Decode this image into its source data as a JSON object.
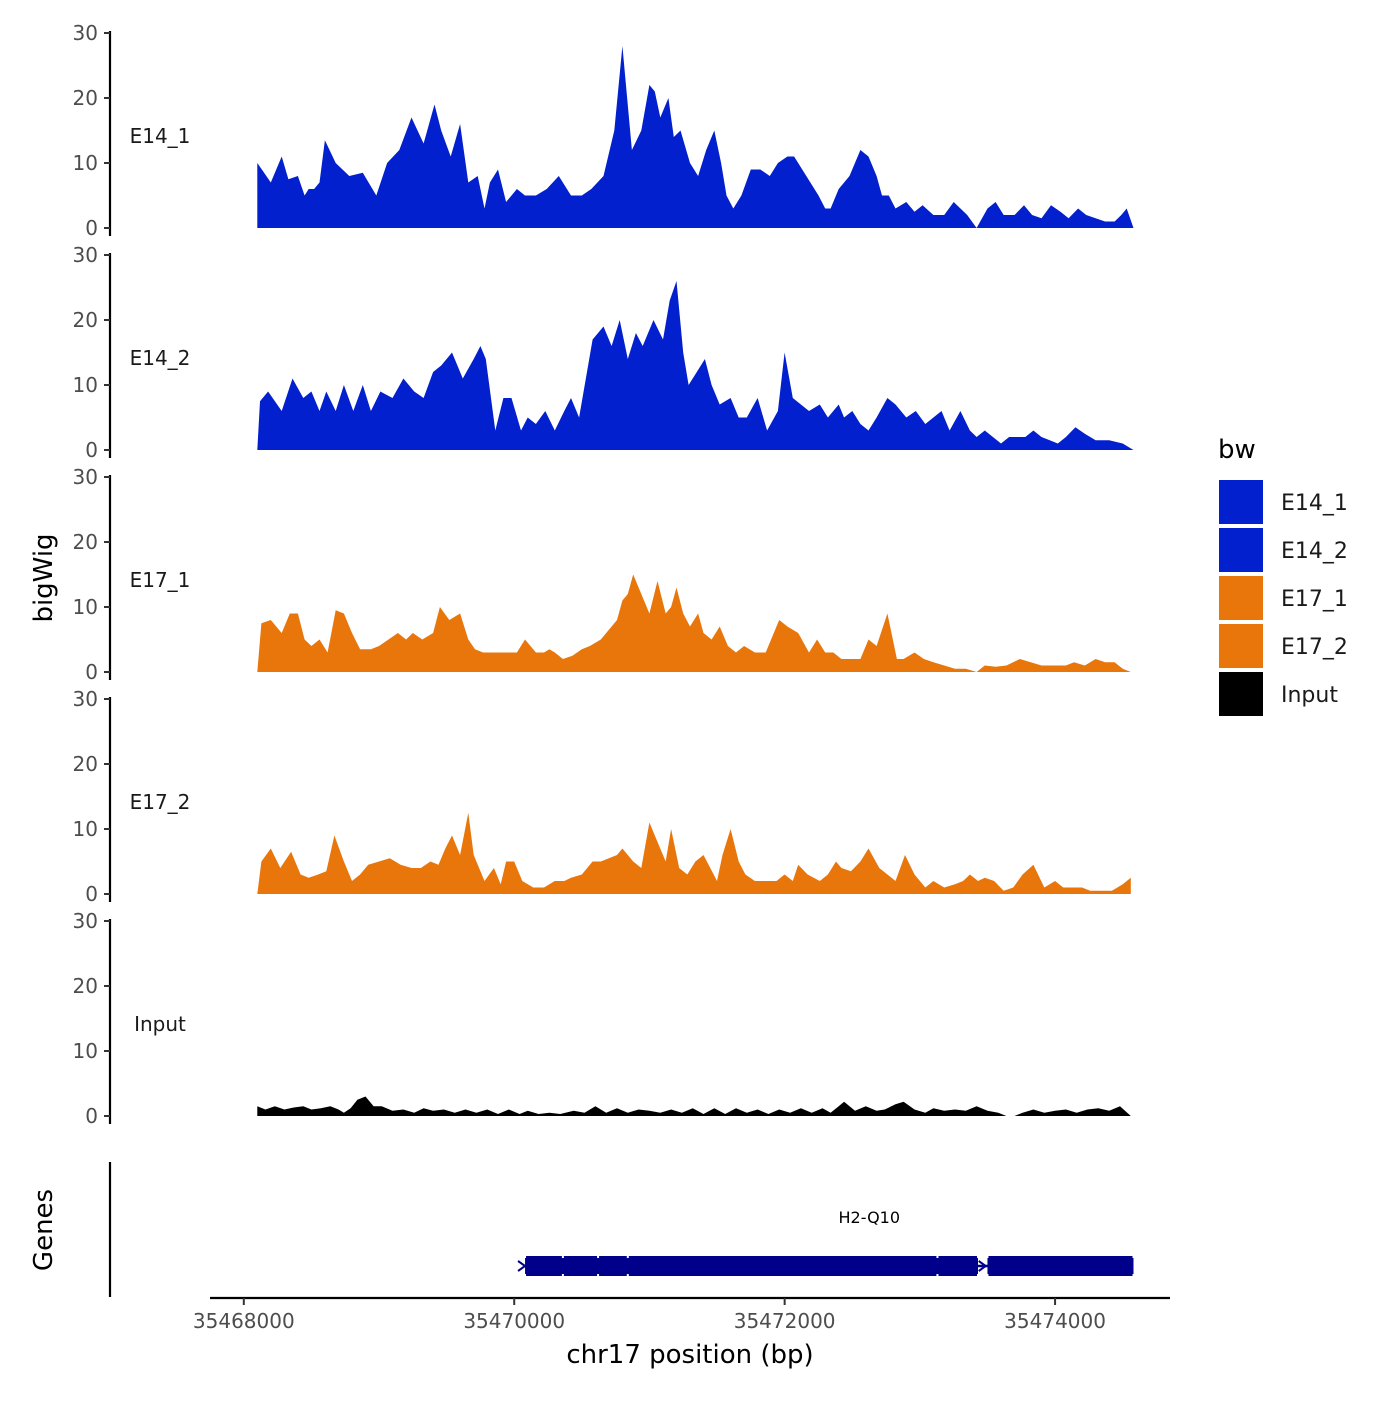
{
  "chart_data": {
    "type": "area",
    "title": "",
    "xlabel": "chr17 position (bp)",
    "ylabel": "bigWig",
    "genes_ylabel": "Genes",
    "xlim": [
      35467750,
      35474850
    ],
    "xticks": [
      35468000,
      35470000,
      35472000,
      35474000
    ],
    "xtick_labels": [
      "35468000",
      "35470000",
      "35472000",
      "35474000"
    ],
    "ylim": [
      0,
      30
    ],
    "yticks": [
      0,
      10,
      20,
      30
    ],
    "ytick_labels": [
      "0",
      "10",
      "20",
      "30"
    ],
    "legend": {
      "title": "bw",
      "position": "right",
      "entries": [
        {
          "label": "E14_1",
          "color": "#0320CE"
        },
        {
          "label": "E14_2",
          "color": "#0320CE"
        },
        {
          "label": "E17_1",
          "color": "#E8760A"
        },
        {
          "label": "E17_2",
          "color": "#E8760A"
        },
        {
          "label": "Input",
          "color": "#000000"
        }
      ]
    },
    "series": [
      {
        "name": "E14_1",
        "color": "#0320CE",
        "x": [
          35468100,
          35468150,
          35468200,
          35468280,
          35468330,
          35468400,
          35468450,
          35468480,
          35468520,
          35468560,
          35468600,
          35468680,
          35468780,
          35468880,
          35468980,
          35469060,
          35469150,
          35469240,
          35469330,
          35469410,
          35469460,
          35469530,
          35469600,
          35469660,
          35469730,
          35469780,
          35469820,
          35469880,
          35469940,
          35470020,
          35470080,
          35470160,
          35470240,
          35470330,
          35470420,
          35470500,
          35470570,
          35470660,
          35470740,
          35470800,
          35470870,
          35470940,
          35471000,
          35471040,
          35471080,
          35471140,
          35471180,
          35471230,
          35471300,
          35471360,
          35471420,
          35471480,
          35471530,
          35471570,
          35471620,
          35471680,
          35471750,
          35471820,
          35471890,
          35471950,
          35472020,
          35472070,
          35472160,
          35472250,
          35472300,
          35472340,
          35472400,
          35472480,
          35472560,
          35472620,
          35472680,
          35472720,
          35472770,
          35472820,
          35472900,
          35472960,
          35473020,
          35473100,
          35473180,
          35473250,
          35473350,
          35473420,
          35473500,
          35473560,
          35473620,
          35473700,
          35473770,
          35473830,
          35473900,
          35473970,
          35474040,
          35474100,
          35474170,
          35474230,
          35474300,
          35474370,
          35474440,
          35474490,
          35474530,
          35474580
        ],
        "values": [
          10,
          8.5,
          7,
          11,
          7.5,
          8,
          5,
          6,
          6,
          7,
          13.5,
          10,
          8,
          8.5,
          5,
          10,
          12,
          17,
          13,
          19,
          15,
          11,
          16,
          7,
          8,
          3,
          7,
          9,
          4,
          6,
          5,
          5,
          6,
          8,
          5,
          5,
          6,
          8,
          15,
          28,
          12,
          15,
          22,
          21,
          17,
          20,
          14,
          15,
          10,
          8,
          12,
          15,
          10,
          5,
          3,
          5,
          9,
          9,
          8,
          10,
          11,
          11,
          8,
          5,
          3,
          3,
          6,
          8,
          12,
          11,
          8,
          5,
          5,
          3,
          4,
          2.5,
          3.5,
          2,
          2,
          4,
          2,
          0,
          3,
          4,
          2,
          2,
          3.5,
          2,
          1.5,
          3.5,
          2.5,
          1.5,
          3,
          2,
          1.5,
          1,
          1,
          2,
          3,
          0
        ],
        "track_label": "E14_1"
      },
      {
        "name": "E14_2",
        "color": "#0320CE",
        "x": [
          35468100,
          35468120,
          35468180,
          35468280,
          35468360,
          35468440,
          35468500,
          35468560,
          35468610,
          35468680,
          35468740,
          35468810,
          35468880,
          35468940,
          35469010,
          35469100,
          35469180,
          35469260,
          35469330,
          35469400,
          35469460,
          35469540,
          35469620,
          35469700,
          35469750,
          35469790,
          35469860,
          35469920,
          35469980,
          35470050,
          35470100,
          35470160,
          35470230,
          35470300,
          35470370,
          35470420,
          35470480,
          35470580,
          35470660,
          35470720,
          35470780,
          35470840,
          35470900,
          35470950,
          35471030,
          35471100,
          35471150,
          35471200,
          35471250,
          35471290,
          35471350,
          35471410,
          35471460,
          35471520,
          35471600,
          35471660,
          35471720,
          35471800,
          35471870,
          35471950,
          35472000,
          35472060,
          35472120,
          35472180,
          35472260,
          35472320,
          35472360,
          35472400,
          35472440,
          35472500,
          35472560,
          35472620,
          35472680,
          35472760,
          35472820,
          35472900,
          35472970,
          35473040,
          35473100,
          35473160,
          35473220,
          35473300,
          35473370,
          35473420,
          35473480,
          35473540,
          35473600,
          35473660,
          35473720,
          35473780,
          35473840,
          35473900,
          35473960,
          35474020,
          35474080,
          35474150,
          35474220,
          35474300,
          35474400,
          35474500,
          35474580
        ],
        "values": [
          0,
          7.5,
          9,
          6,
          11,
          8,
          9,
          6,
          9,
          6,
          10,
          6,
          10,
          6,
          9,
          8,
          11,
          9,
          8,
          12,
          13,
          15,
          11,
          14,
          16,
          14,
          3,
          8,
          8,
          3,
          5,
          4,
          6,
          3,
          6,
          8,
          5,
          17,
          19,
          16,
          20,
          14,
          18,
          16,
          20,
          17,
          23,
          26,
          15,
          10,
          12,
          14,
          10,
          7,
          8,
          5,
          5,
          8,
          3,
          6,
          15,
          8,
          7,
          6,
          7,
          5,
          6,
          7,
          5,
          6,
          4,
          3,
          5,
          8,
          7,
          5,
          6,
          4,
          5,
          6,
          3,
          6,
          3,
          2,
          3,
          2,
          1,
          2,
          2,
          2,
          3,
          2,
          1.5,
          1,
          2,
          3.5,
          2.5,
          1.5,
          1.5,
          1,
          0
        ],
        "track_label": "E14_2"
      },
      {
        "name": "E17_1",
        "color": "#E8760A",
        "x": [
          35468100,
          35468130,
          35468200,
          35468280,
          35468340,
          35468400,
          35468450,
          35468500,
          35468560,
          35468620,
          35468680,
          35468740,
          35468800,
          35468860,
          35468940,
          35469000,
          35469070,
          35469140,
          35469200,
          35469250,
          35469320,
          35469400,
          35469450,
          35469520,
          35469600,
          35469660,
          35469710,
          35469770,
          35469830,
          35469900,
          35469940,
          35470020,
          35470080,
          35470160,
          35470220,
          35470260,
          35470300,
          35470360,
          35470430,
          35470500,
          35470560,
          35470640,
          35470700,
          35470760,
          35470800,
          35470840,
          35470880,
          35470940,
          35471000,
          35471060,
          35471120,
          35471160,
          35471200,
          35471250,
          35471300,
          35471360,
          35471400,
          35471460,
          35471520,
          35471580,
          35471640,
          35471700,
          35471780,
          35471860,
          35471960,
          35472020,
          35472100,
          35472180,
          35472240,
          35472300,
          35472360,
          35472420,
          35472480,
          35472560,
          35472620,
          35472680,
          35472760,
          35472830,
          35472880,
          35472960,
          35473030,
          35473100,
          35473180,
          35473260,
          35473340,
          35473420,
          35473480,
          35473560,
          35473640,
          35473740,
          35473820,
          35473900,
          35473960,
          35474020,
          35474080,
          35474140,
          35474220,
          35474300,
          35474370,
          35474440,
          35474500,
          35474560
        ],
        "values": [
          0,
          7.5,
          8,
          6,
          9,
          9,
          5,
          4,
          5,
          3,
          9.5,
          9,
          6,
          3.5,
          3.5,
          4,
          5,
          6,
          5,
          6,
          5,
          6,
          10,
          8,
          9,
          5,
          3.5,
          3,
          3,
          3,
          3,
          3,
          5,
          3,
          3,
          3.5,
          3,
          2,
          2.5,
          3.5,
          4,
          5,
          6.5,
          8,
          11,
          12,
          15,
          12,
          9,
          14,
          9,
          10,
          13,
          9,
          7,
          9,
          6,
          5,
          7,
          4,
          3,
          4,
          3,
          3,
          8,
          7,
          6,
          3,
          5,
          3,
          3,
          2,
          2,
          2,
          5,
          4,
          9,
          2,
          2,
          3,
          2,
          1.5,
          1,
          0.5,
          0.5,
          0,
          1,
          0.8,
          1,
          2,
          1.5,
          1,
          1,
          1,
          1,
          1.5,
          1,
          2,
          1.5,
          1.5,
          0.5,
          0
        ],
        "track_label": "E17_1"
      },
      {
        "name": "E17_2",
        "color": "#E8760A",
        "x": [
          35468100,
          35468130,
          35468200,
          35468270,
          35468350,
          35468420,
          35468480,
          35468550,
          35468610,
          35468670,
          35468740,
          35468800,
          35468860,
          35468920,
          35469000,
          35469080,
          35469160,
          35469240,
          35469310,
          35469380,
          35469440,
          35469490,
          35469540,
          35469600,
          35469660,
          35469700,
          35469780,
          35469850,
          35469900,
          35469940,
          35470000,
          35470060,
          35470140,
          35470220,
          35470300,
          35470370,
          35470420,
          35470500,
          35470580,
          35470640,
          35470700,
          35470760,
          35470800,
          35470880,
          35470940,
          35471000,
          35471060,
          35471120,
          35471160,
          35471220,
          35471280,
          35471340,
          35471400,
          35471450,
          35471500,
          35471540,
          35471600,
          35471660,
          35471710,
          35471780,
          35471860,
          35471940,
          35472000,
          35472060,
          35472100,
          35472170,
          35472260,
          35472320,
          35472380,
          35472420,
          35472490,
          35472560,
          35472620,
          35472700,
          35472760,
          35472820,
          35472890,
          35472960,
          35473040,
          35473100,
          35473180,
          35473260,
          35473320,
          35473370,
          35473430,
          35473480,
          35473550,
          35473620,
          35473690,
          35473760,
          35473840,
          35473920,
          35474000,
          35474060,
          35474130,
          35474200,
          35474260,
          35474340,
          35474420,
          35474500,
          35474560
        ],
        "values": [
          0,
          5,
          7,
          4,
          6.5,
          3,
          2.5,
          3,
          3.5,
          9,
          5,
          2,
          3,
          4.5,
          5,
          5.5,
          4.5,
          4,
          4,
          5,
          4.5,
          7,
          9,
          6,
          12.5,
          6,
          2,
          4,
          1.5,
          5,
          5,
          2,
          1,
          1,
          2,
          2,
          2.5,
          3,
          5,
          5,
          5.5,
          6,
          7,
          5,
          4,
          11,
          8,
          5,
          10,
          4,
          3,
          5,
          6,
          4,
          2,
          6,
          10,
          5,
          3,
          2,
          2,
          2,
          3,
          2,
          4.5,
          3,
          2,
          3,
          5,
          4,
          3.5,
          5,
          7,
          4,
          3,
          2,
          6,
          3,
          1,
          2,
          1,
          1.5,
          2,
          3,
          2,
          2.5,
          2,
          0.5,
          1,
          3,
          4.5,
          1,
          2,
          1,
          1,
          1,
          0.5,
          0.5,
          0.5,
          1.5,
          2.5
        ],
        "track_label": "E17_2"
      },
      {
        "name": "Input",
        "color": "#000000",
        "x": [
          35468100,
          35468160,
          35468230,
          35468300,
          35468370,
          35468440,
          35468500,
          35468570,
          35468640,
          35468700,
          35468740,
          35468790,
          35468840,
          35468900,
          35468960,
          35469020,
          35469100,
          35469180,
          35469260,
          35469330,
          35469400,
          35469480,
          35469560,
          35469640,
          35469720,
          35469800,
          35469880,
          35469960,
          35470040,
          35470100,
          35470180,
          35470260,
          35470340,
          35470440,
          35470520,
          35470600,
          35470680,
          35470760,
          35470840,
          35470920,
          35471000,
          35471080,
          35471160,
          35471240,
          35471320,
          35471400,
          35471480,
          35471560,
          35471640,
          35471720,
          35471800,
          35471880,
          35471960,
          35472040,
          35472120,
          35472200,
          35472280,
          35472340,
          35472400,
          35472440,
          35472520,
          35472600,
          35472680,
          35472740,
          35472820,
          35472880,
          35472960,
          35473040,
          35473100,
          35473180,
          35473260,
          35473340,
          35473420,
          35473500,
          35473580,
          35473640,
          35473700,
          35473760,
          35473840,
          35473920,
          35474000,
          35474080,
          35474160,
          35474240,
          35474320,
          35474400,
          35474480,
          35474560
        ],
        "values": [
          1.5,
          1,
          1.5,
          1,
          1.3,
          1.5,
          1,
          1.2,
          1.5,
          1,
          0.5,
          1.2,
          2.5,
          3,
          1.5,
          1.5,
          0.8,
          1,
          0.5,
          1.2,
          0.8,
          1,
          0.5,
          1,
          0.5,
          1,
          0.3,
          1,
          0.3,
          0.8,
          0.3,
          0.5,
          0.3,
          0.8,
          0.5,
          1.5,
          0.5,
          1.2,
          0.5,
          1,
          0.8,
          0.5,
          1,
          0.5,
          1.2,
          0.3,
          1.2,
          0.3,
          1.2,
          0.5,
          1,
          0.3,
          1,
          0.5,
          1.2,
          0.5,
          1.2,
          0.5,
          1.5,
          2.2,
          0.8,
          1.5,
          0.8,
          1,
          1.8,
          2.2,
          1,
          0.5,
          1.2,
          0.8,
          1,
          0.8,
          1.5,
          0.8,
          0.5,
          0,
          0,
          0.5,
          1,
          0.5,
          0.8,
          1,
          0.5,
          1,
          1.2,
          0.8,
          1.5,
          0
        ],
        "track_label": "Input"
      }
    ],
    "genes": [
      {
        "name": "H2-Q10",
        "start": 35470080,
        "end": 35474580,
        "strand": "+",
        "color": "#00008B",
        "exons": [
          {
            "start": 35470080,
            "end": 35473430
          },
          {
            "start": 35473500,
            "end": 35474580
          }
        ],
        "thick_blocks": [
          {
            "start": 35470080,
            "end": 35470360
          },
          {
            "start": 35470360,
            "end": 35470620
          },
          {
            "start": 35470620,
            "end": 35470840
          },
          {
            "start": 35470840,
            "end": 35473130
          },
          {
            "start": 35473130,
            "end": 35473430
          },
          {
            "start": 35473500,
            "end": 35474580
          }
        ]
      }
    ]
  }
}
